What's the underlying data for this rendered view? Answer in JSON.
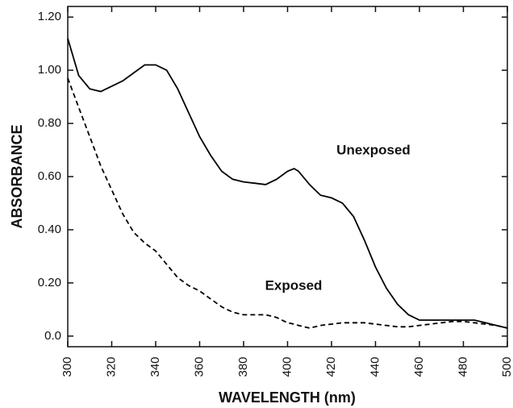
{
  "chart_data": {
    "type": "line",
    "xlabel": "WAVELENGTH (nm)",
    "ylabel": "ABSORBANCE",
    "x": [
      300,
      305,
      310,
      315,
      320,
      325,
      330,
      335,
      340,
      345,
      350,
      355,
      360,
      365,
      370,
      375,
      380,
      385,
      390,
      395,
      400,
      403,
      405,
      410,
      415,
      420,
      425,
      430,
      435,
      440,
      445,
      450,
      455,
      460,
      465,
      470,
      475,
      480,
      485,
      490,
      495,
      500
    ],
    "series": [
      {
        "name": "Unexposed",
        "color": "#000000",
        "linestyle": "solid",
        "values": [
          1.12,
          0.98,
          0.93,
          0.92,
          0.94,
          0.96,
          0.99,
          1.02,
          1.02,
          1.0,
          0.93,
          0.84,
          0.75,
          0.68,
          0.62,
          0.59,
          0.58,
          0.575,
          0.57,
          0.59,
          0.62,
          0.63,
          0.62,
          0.57,
          0.53,
          0.52,
          0.5,
          0.45,
          0.36,
          0.26,
          0.18,
          0.12,
          0.08,
          0.06,
          0.06,
          0.06,
          0.06,
          0.06,
          0.06,
          0.05,
          0.04,
          0.03
        ]
      },
      {
        "name": "Exposed",
        "color": "#000000",
        "linestyle": "dashed",
        "values": [
          0.97,
          0.86,
          0.75,
          0.64,
          0.55,
          0.46,
          0.39,
          0.35,
          0.32,
          0.27,
          0.22,
          0.19,
          0.17,
          0.14,
          0.11,
          0.09,
          0.08,
          0.08,
          0.08,
          0.07,
          0.05,
          0.045,
          0.04,
          0.03,
          0.04,
          0.045,
          0.05,
          0.05,
          0.05,
          0.045,
          0.04,
          0.035,
          0.035,
          0.04,
          0.045,
          0.05,
          0.055,
          0.055,
          0.05,
          0.045,
          0.04,
          0.03
        ]
      }
    ],
    "xlim": [
      300,
      500
    ],
    "xticks": [
      300,
      320,
      340,
      360,
      380,
      400,
      420,
      440,
      460,
      480,
      500
    ],
    "ylim": [
      -0.04,
      1.24
    ],
    "yticks": [
      {
        "value": 0,
        "label": "0.0"
      },
      {
        "value": 0.2,
        "label": "0.20"
      },
      {
        "value": 0.4,
        "label": "0.40"
      },
      {
        "value": 0.6,
        "label": "0.60"
      },
      {
        "value": 0.8,
        "label": "0.80"
      },
      {
        "value": 1.0,
        "label": "1.00"
      },
      {
        "value": 1.2,
        "label": "1.20"
      }
    ],
    "grid": false
  }
}
